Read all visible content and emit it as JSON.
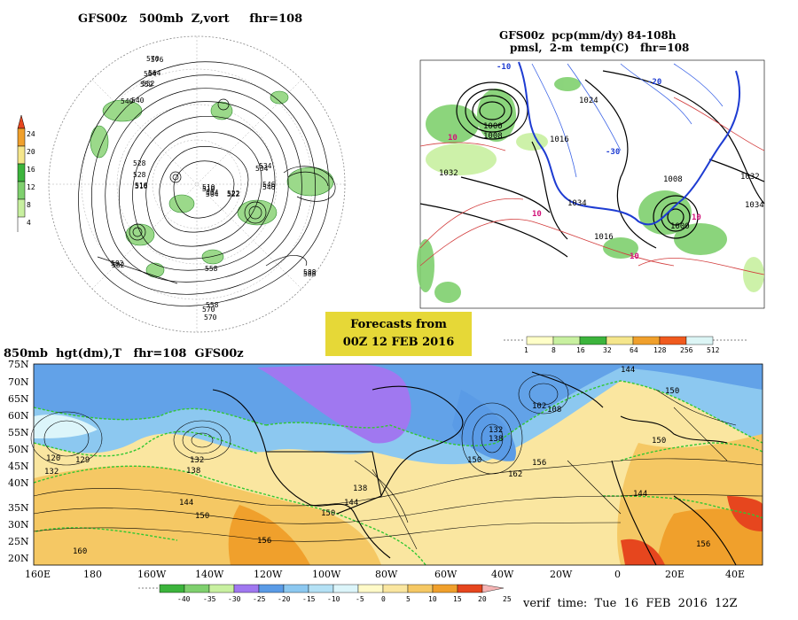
{
  "panels": {
    "polar": {
      "title": "GFS00z   500mb  Z,vort     fhr=108",
      "colorbar_ticks": [
        "24",
        "20",
        "16",
        "12",
        "8",
        "4"
      ],
      "contour_labels": [
        "576",
        "564",
        "552",
        "540",
        "528",
        "516",
        "504",
        "510",
        "522",
        "534",
        "546",
        "558",
        "570",
        "582",
        "588"
      ]
    },
    "precip": {
      "title_line1": "GFS00z  pcp(mm/dy) 84-108h",
      "title_line2": "pmsl,  2-m  temp(C)   fhr=108",
      "contour_labels": [
        "1000",
        "1008",
        "1016",
        "1024",
        "1032",
        "1034",
        "1000",
        "1008",
        "1016",
        "1032",
        "1034"
      ],
      "temp_labels": [
        "-10",
        "-20",
        "-30",
        "10",
        "10",
        "10",
        "10"
      ],
      "colorbar_ticks": [
        "1",
        "8",
        "16",
        "32",
        "64",
        "128",
        "256",
        "512"
      ],
      "colorbar_colors": [
        "#ffffc8",
        "#c8f0a0",
        "#7fd06e",
        "#3cb43c",
        "#f5dc6e",
        "#f0a02c",
        "#f05a1e",
        "#dcf5f5"
      ]
    },
    "forecast_box": {
      "line1": "Forecasts from",
      "line2": "00Z  12  FEB  2016"
    },
    "main": {
      "title": "850mb  hgt(dm),T   fhr=108  GFS00z",
      "lat_labels": [
        "75N",
        "70N",
        "65N",
        "60N",
        "55N",
        "50N",
        "45N",
        "40N",
        "35N",
        "30N",
        "25N",
        "20N"
      ],
      "lon_labels": [
        "160E",
        "180",
        "160W",
        "140W",
        "120W",
        "100W",
        "80W",
        "60W",
        "40W",
        "20W",
        "0",
        "20E",
        "40E"
      ],
      "height_labels": [
        "120",
        "129",
        "132",
        "132",
        "138",
        "144",
        "150",
        "156",
        "160",
        "150",
        "138",
        "144",
        "150",
        "102",
        "108",
        "150",
        "144",
        "156",
        "150",
        "162",
        "156",
        "132",
        "138",
        "144"
      ],
      "colorbar_ticks": [
        "-40",
        "-35",
        "-30",
        "-25",
        "-20",
        "-15",
        "-10",
        "-5",
        "0",
        "5",
        "10",
        "15",
        "20",
        "25"
      ],
      "colorbar_colors": [
        "#3cb43c",
        "#7fd06e",
        "#c8f0a0",
        "#a078f0",
        "#5a9be6",
        "#8cc8f0",
        "#b4e1f5",
        "#dcf5fa",
        "#fffac8",
        "#fae6a0",
        "#f5c864",
        "#f0a02c",
        "#e6461e",
        "#f5b4b4"
      ],
      "verif_time": "verif  time:  Tue  16  FEB  2016  12Z"
    }
  }
}
